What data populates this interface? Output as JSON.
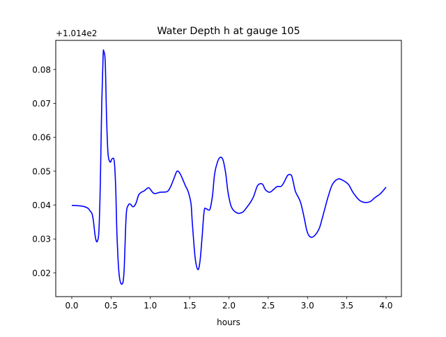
{
  "chart_data": {
    "type": "line",
    "title": "Water Depth h at gauge 105",
    "xlabel": "hours",
    "ylabel": "",
    "offset_text": "+1.014e2",
    "xlim": [
      -0.204,
      4.195
    ],
    "ylim": [
      0.013,
      0.0886
    ],
    "xticks": [
      0.0,
      0.5,
      1.0,
      1.5,
      2.0,
      2.5,
      3.0,
      3.5,
      4.0
    ],
    "xtick_labels": [
      "0.0",
      "0.5",
      "1.0",
      "1.5",
      "2.0",
      "2.5",
      "3.0",
      "3.5",
      "4.0"
    ],
    "yticks": [
      0.02,
      0.03,
      0.04,
      0.05,
      0.06,
      0.07,
      0.08
    ],
    "ytick_labels": [
      "0.02",
      "0.03",
      "0.04",
      "0.05",
      "0.06",
      "0.07",
      "0.08"
    ],
    "grid": false,
    "series": [
      {
        "name": "h",
        "color": "#0000ff",
        "x": [
          0.0,
          0.133,
          0.204,
          0.239,
          0.257,
          0.275,
          0.293,
          0.31,
          0.328,
          0.346,
          0.364,
          0.381,
          0.399,
          0.408,
          0.426,
          0.443,
          0.461,
          0.488,
          0.514,
          0.541,
          0.559,
          0.576,
          0.603,
          0.639,
          0.665,
          0.692,
          0.718,
          0.745,
          0.78,
          0.816,
          0.851,
          0.887,
          0.922,
          0.958,
          0.984,
          1.02,
          1.055,
          1.126,
          1.215,
          1.259,
          1.304,
          1.339,
          1.375,
          1.41,
          1.446,
          1.481,
          1.517,
          1.534,
          1.57,
          1.605,
          1.632,
          1.659,
          1.685,
          1.712,
          1.747,
          1.765,
          1.792,
          1.818,
          1.854,
          1.889,
          1.925,
          1.96,
          1.987,
          2.031,
          2.102,
          2.173,
          2.226,
          2.279,
          2.315,
          2.359,
          2.395,
          2.43,
          2.466,
          2.519,
          2.572,
          2.616,
          2.661,
          2.696,
          2.749,
          2.794,
          2.82,
          2.847,
          2.909,
          2.953,
          2.989,
          3.016,
          3.051,
          3.095,
          3.149,
          3.184,
          3.22,
          3.264,
          3.317,
          3.388,
          3.45,
          3.521,
          3.583,
          3.663,
          3.725,
          3.796,
          3.858,
          3.929,
          4.0
        ],
        "y": [
          0.0399,
          0.0397,
          0.0391,
          0.0381,
          0.0375,
          0.0354,
          0.0317,
          0.0295,
          0.0295,
          0.0327,
          0.0471,
          0.0697,
          0.0841,
          0.0853,
          0.0821,
          0.0656,
          0.0553,
          0.0527,
          0.0537,
          0.0529,
          0.0451,
          0.0307,
          0.0194,
          0.0167,
          0.0204,
          0.0368,
          0.0399,
          0.0403,
          0.0395,
          0.0405,
          0.043,
          0.0438,
          0.0442,
          0.0449,
          0.0451,
          0.044,
          0.0434,
          0.0438,
          0.044,
          0.0455,
          0.0481,
          0.05,
          0.0494,
          0.0477,
          0.0457,
          0.044,
          0.0405,
          0.0348,
          0.0245,
          0.021,
          0.0235,
          0.0307,
          0.0383,
          0.0389,
          0.0385,
          0.0393,
          0.043,
          0.0492,
          0.0527,
          0.0541,
          0.0533,
          0.0492,
          0.044,
          0.0395,
          0.0377,
          0.0379,
          0.0393,
          0.041,
          0.0426,
          0.0455,
          0.0463,
          0.0461,
          0.0445,
          0.0438,
          0.0447,
          0.0455,
          0.0455,
          0.0465,
          0.0488,
          0.0488,
          0.0467,
          0.044,
          0.041,
          0.0368,
          0.0327,
          0.0311,
          0.0305,
          0.0311,
          0.0331,
          0.0358,
          0.0389,
          0.0426,
          0.0461,
          0.0477,
          0.0473,
          0.0461,
          0.0436,
          0.0414,
          0.0408,
          0.041,
          0.0422,
          0.0434,
          0.0453
        ]
      }
    ]
  }
}
